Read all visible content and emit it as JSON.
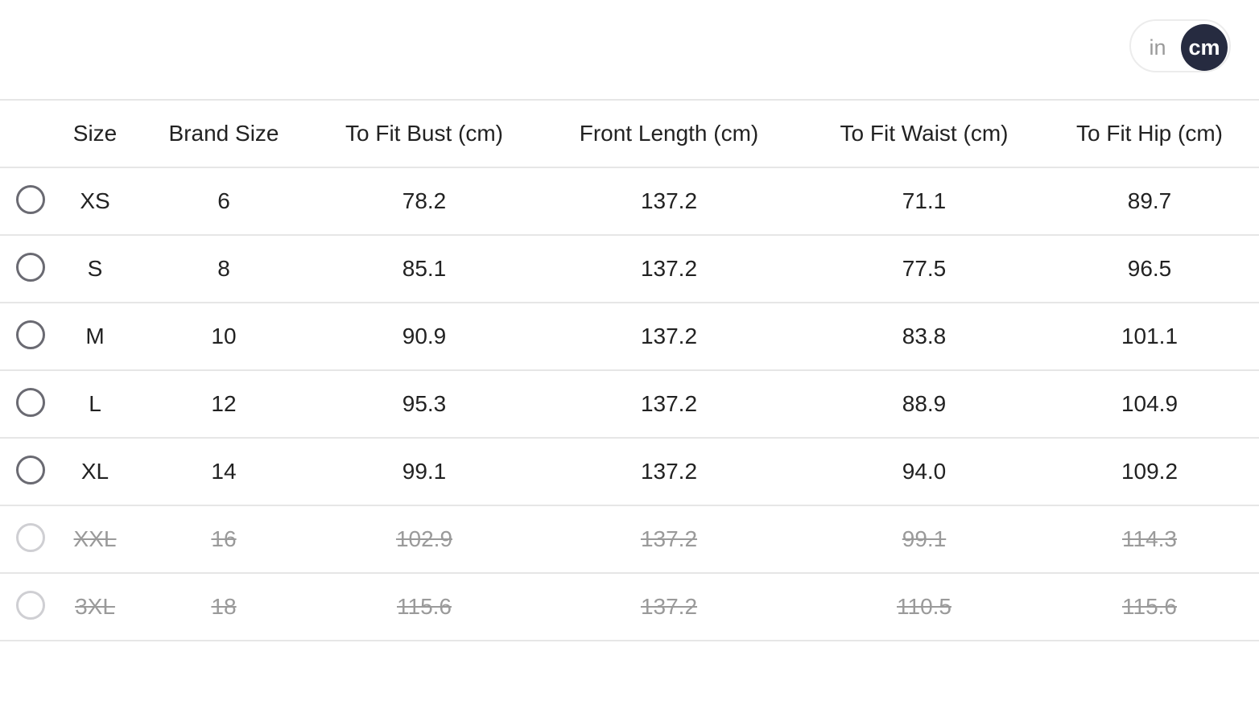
{
  "unit_toggle": {
    "options": [
      "in",
      "cm"
    ],
    "selected": "cm"
  },
  "table": {
    "headers": [
      "Size",
      "Brand Size",
      "To Fit Bust (cm)",
      "Front Length (cm)",
      "To Fit Waist (cm)",
      "To Fit Hip (cm)"
    ],
    "rows": [
      {
        "cells": [
          "XS",
          "6",
          "78.2",
          "137.2",
          "71.1",
          "89.7"
        ],
        "available": true
      },
      {
        "cells": [
          "S",
          "8",
          "85.1",
          "137.2",
          "77.5",
          "96.5"
        ],
        "available": true
      },
      {
        "cells": [
          "M",
          "10",
          "90.9",
          "137.2",
          "83.8",
          "101.1"
        ],
        "available": true
      },
      {
        "cells": [
          "L",
          "12",
          "95.3",
          "137.2",
          "88.9",
          "104.9"
        ],
        "available": true
      },
      {
        "cells": [
          "XL",
          "14",
          "99.1",
          "137.2",
          "94.0",
          "109.2"
        ],
        "available": true
      },
      {
        "cells": [
          "XXL",
          "16",
          "102.9",
          "137.2",
          "99.1",
          "114.3"
        ],
        "available": false
      },
      {
        "cells": [
          "3XL",
          "18",
          "115.6",
          "137.2",
          "110.5",
          "115.6"
        ],
        "available": false
      }
    ]
  },
  "colors": {
    "accent": "#262b40",
    "border": "#e6e6e6",
    "unavailable": "#9a9a9a"
  }
}
